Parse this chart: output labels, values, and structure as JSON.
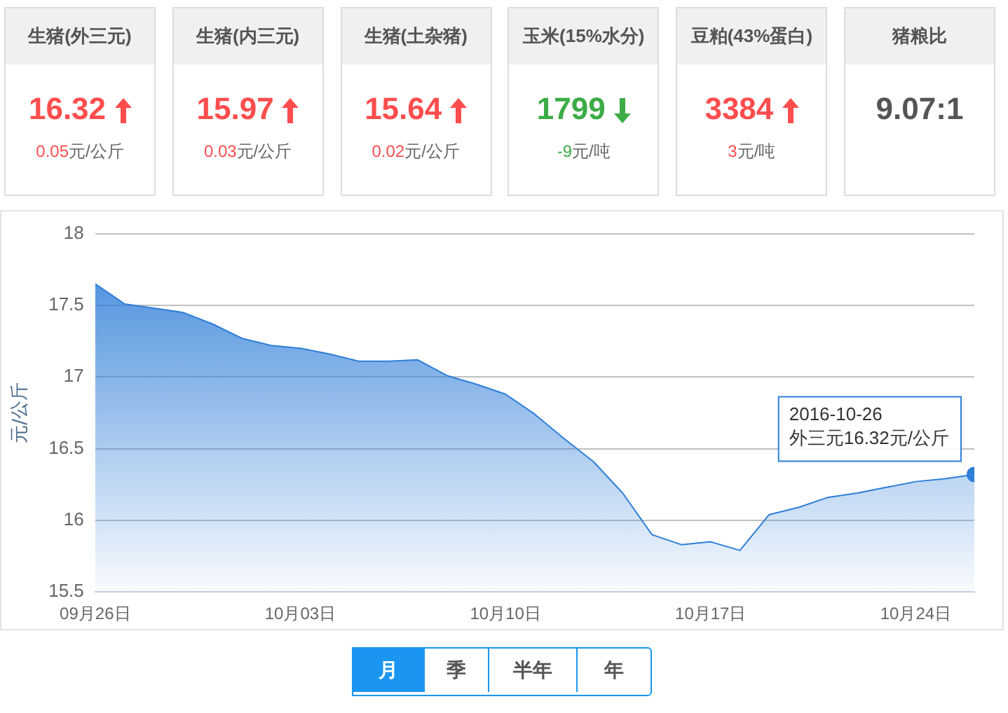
{
  "chart_data": [
    {
      "type": "other",
      "annotations": [
        "16.32",
        "15.97",
        "15.64",
        "1799",
        "3384",
        "9.07:1"
      ],
      "categories": [
        "生猪(外三元)",
        "生猪(内三元)",
        "生猪(土杂猪)",
        "玉米(15%水分)",
        "豆粕(43%蛋白)",
        "猪粮比"
      ],
      "series": [
        {
          "values": [
            0.05,
            0.03,
            0.02,
            -9,
            3,
            null
          ],
          "value_labels": [
            "0.05元/公斤",
            "0.03元/公斤",
            "0.02元/公斤",
            "-9元/吨",
            "3元/吨",
            null
          ],
          "colors": [
            "#ff4d4d",
            "#ff4d4d",
            "#ff4d4d",
            "#3cac46",
            "#ff4d4d",
            "#555555"
          ]
        }
      ]
    },
    {
      "type": "area",
      "ylabel": "元/公斤",
      "x": [
        "2016-09-26",
        "2016-09-27",
        "2016-09-28",
        "2016-09-29",
        "2016-09-30",
        "2016-10-01",
        "2016-10-02",
        "2016-10-03",
        "2016-10-04",
        "2016-10-05",
        "2016-10-06",
        "2016-10-07",
        "2016-10-08",
        "2016-10-09",
        "2016-10-10",
        "2016-10-11",
        "2016-10-12",
        "2016-10-13",
        "2016-10-14",
        "2016-10-15",
        "2016-10-16",
        "2016-10-17",
        "2016-10-18",
        "2016-10-19",
        "2016-10-20",
        "2016-10-21",
        "2016-10-22",
        "2016-10-23",
        "2016-10-24",
        "2016-10-25",
        "2016-10-26"
      ],
      "series": [
        {
          "color": "#2f7ed8",
          "values": [
            17.65,
            17.51,
            17.48,
            17.45,
            17.37,
            17.27,
            17.22,
            17.2,
            17.16,
            17.11,
            17.11,
            17.12,
            17.01,
            16.95,
            16.88,
            16.74,
            16.57,
            16.41,
            16.19,
            15.9,
            15.83,
            15.85,
            15.79,
            16.04,
            16.09,
            16.16,
            16.19,
            16.23,
            16.27,
            16.29,
            16.32
          ]
        }
      ],
      "xlim": [
        "2016-09-26",
        "2016-10-26"
      ],
      "xticks": [
        {
          "value": "2016-09-26",
          "label": "09月26日"
        },
        {
          "value": "2016-10-03",
          "label": "10月03日"
        },
        {
          "value": "2016-10-10",
          "label": "10月10日"
        },
        {
          "value": "2016-10-17",
          "label": "10月17日"
        },
        {
          "value": "2016-10-24",
          "label": "10月24日"
        }
      ],
      "ylim": [
        15.5,
        18
      ],
      "yticks": [
        15.5,
        16,
        16.5,
        17,
        17.5,
        18
      ],
      "grid": "y",
      "legend": false,
      "marker": "none",
      "annotations": [
        {
          "text": "2016-10-26\n外三元16.32元/公斤",
          "x": "2016-10-26",
          "y": 16.32
        },
        "月",
        "季",
        "半年",
        "年"
      ]
    }
  ]
}
